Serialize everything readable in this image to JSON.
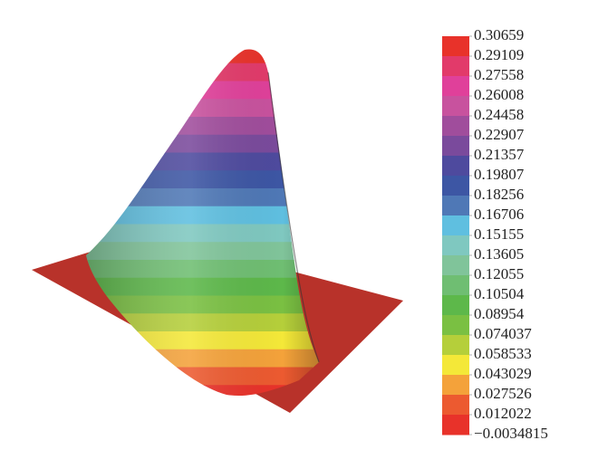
{
  "chart_data": {
    "type": "surface",
    "levels": [
      0.30659,
      0.29109,
      0.27558,
      0.26008,
      0.24458,
      0.22907,
      0.21357,
      0.19807,
      0.18256,
      0.16706,
      0.15155,
      0.13605,
      0.12055,
      0.10504,
      0.08954,
      0.074037,
      0.058533,
      0.043029,
      0.027526,
      0.012022,
      {
        "value": -0.0034815,
        "label": "−0.0034815"
      }
    ],
    "colors": [
      "#e8322a",
      "#e23a6a",
      "#e0409a",
      "#c8529e",
      "#a04d9c",
      "#7a4a9c",
      "#4e4a9e",
      "#3d56a4",
      "#4f78b6",
      "#5fbfe0",
      "#7fc8c0",
      "#80c49a",
      "#6fbe72",
      "#5db84a",
      "#7ac042",
      "#b5cf3a",
      "#f4e838",
      "#f4a23a",
      "#ec5a30",
      "#e8322a"
    ],
    "base_color": "#b8322a"
  }
}
